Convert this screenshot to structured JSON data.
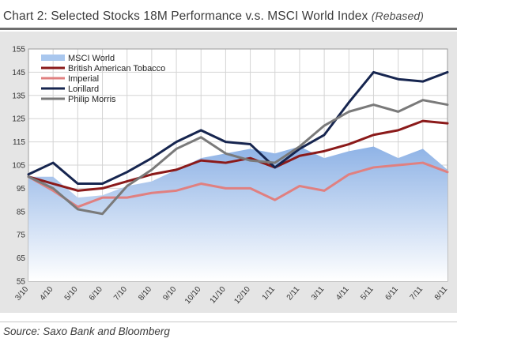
{
  "header": {
    "title_main": "Chart 2: Selected Stocks 18M Performance v.s. MSCI World Index",
    "title_sub": "(Rebased)"
  },
  "footer": {
    "source": "Source: Saxo Bank and Bloomberg"
  },
  "chart_data": {
    "type": "line",
    "title": "Chart 2: Selected Stocks 18M Performance v.s. MSCI World Index (Rebased)",
    "xlabel": "",
    "ylabel": "",
    "ylim": [
      55,
      155
    ],
    "yticks": [
      55,
      65,
      75,
      85,
      95,
      105,
      115,
      125,
      135,
      145,
      155
    ],
    "grid": true,
    "legend_position": "top-left",
    "categories": [
      "3/10",
      "4/10",
      "5/10",
      "6/10",
      "7/10",
      "8/10",
      "9/10",
      "10/10",
      "11/10",
      "12/10",
      "1/11",
      "2/11",
      "3/11",
      "4/11",
      "5/11",
      "6/11",
      "7/11",
      "8/11"
    ],
    "series": [
      {
        "name": "MSCI World",
        "kind": "area",
        "color": "#9fc0ea",
        "values": [
          100,
          100,
          91,
          92,
          96,
          98,
          103,
          108,
          110,
          112,
          110,
          113,
          108,
          111,
          113,
          108,
          112,
          103
        ]
      },
      {
        "name": "British American Tobacco",
        "kind": "line",
        "color": "#8b1a1a",
        "values": [
          100,
          97,
          94,
          95,
          98,
          101,
          103,
          107,
          106,
          108,
          104,
          109,
          111,
          114,
          118,
          120,
          124,
          123
        ]
      },
      {
        "name": "Imperial",
        "kind": "line",
        "color": "#e08080",
        "values": [
          100,
          94,
          87,
          91,
          91,
          93,
          94,
          97,
          95,
          95,
          90,
          96,
          94,
          101,
          104,
          105,
          106,
          102
        ]
      },
      {
        "name": "Lorillard",
        "kind": "line",
        "color": "#16254f",
        "values": [
          101,
          106,
          97,
          97,
          102,
          108,
          115,
          120,
          115,
          114,
          104,
          112,
          118,
          132,
          145,
          142,
          141,
          145
        ]
      },
      {
        "name": "Philip Morris",
        "kind": "line",
        "color": "#7a7a7a",
        "values": [
          100,
          95,
          86,
          84,
          96,
          103,
          112,
          117,
          110,
          107,
          106,
          113,
          122,
          128,
          131,
          128,
          133,
          131
        ]
      }
    ]
  }
}
